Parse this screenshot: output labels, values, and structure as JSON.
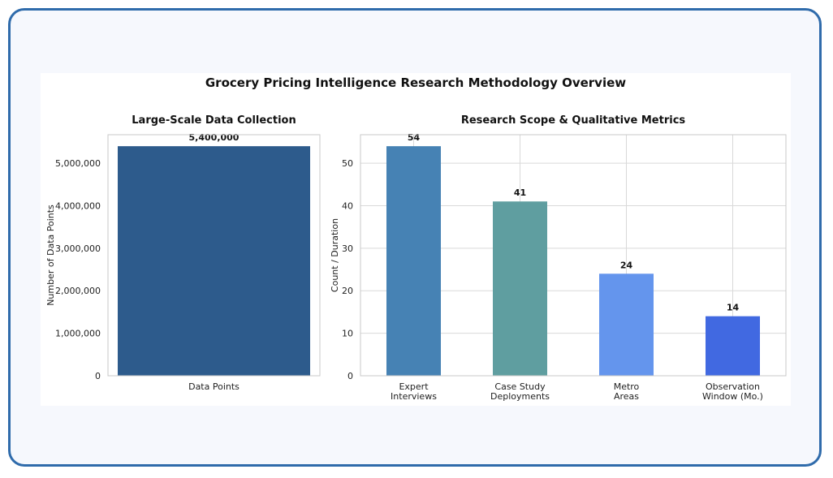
{
  "chart_data": {
    "title": "Grocery Pricing Intelligence Research Methodology Overview",
    "charts": [
      {
        "type": "bar",
        "title": "Large-Scale Data Collection",
        "categories": [
          "Data Points"
        ],
        "values": [
          5400000
        ],
        "value_labels": [
          "5,400,000"
        ],
        "ylabel": "Number of Data Points",
        "xlabel": "",
        "ylim": [
          0,
          5670000
        ],
        "yticks": [
          0,
          1000000,
          2000000,
          3000000,
          4000000,
          5000000
        ],
        "ytick_labels": [
          "0",
          "1,000,000",
          "2,000,000",
          "3,000,000",
          "4,000,000",
          "5,000,000"
        ],
        "colors": [
          "#2d5b8c"
        ],
        "grid": false
      },
      {
        "type": "bar",
        "title": "Research Scope & Qualitative Metrics",
        "categories": [
          [
            "Expert",
            "Interviews"
          ],
          [
            "Case Study",
            "Deployments"
          ],
          [
            "Metro",
            "Areas"
          ],
          [
            "Observation",
            "Window (Mo.)"
          ]
        ],
        "values": [
          54,
          41,
          24,
          14
        ],
        "value_labels": [
          "54",
          "41",
          "24",
          "14"
        ],
        "ylabel": "Count / Duration",
        "xlabel": "",
        "ylim": [
          0,
          56.7
        ],
        "yticks": [
          0,
          10,
          20,
          30,
          40,
          50
        ],
        "ytick_labels": [
          "0",
          "10",
          "20",
          "30",
          "40",
          "50"
        ],
        "colors": [
          "#4682b4",
          "#5f9ea0",
          "#6495ed",
          "#4169e1"
        ],
        "grid": true
      }
    ]
  }
}
